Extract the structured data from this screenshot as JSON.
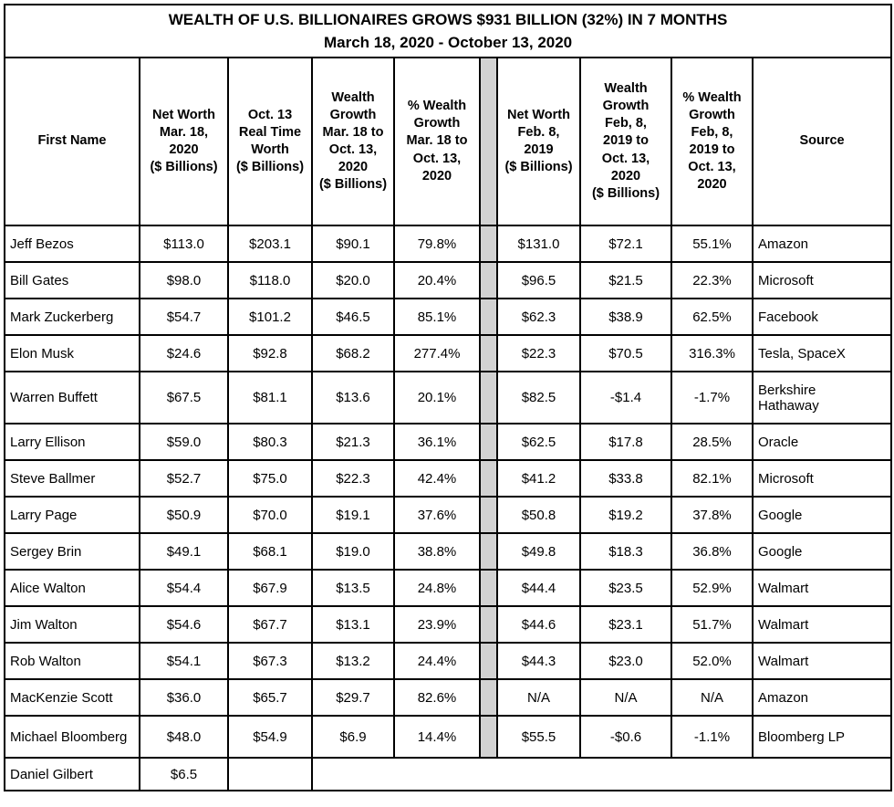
{
  "title": {
    "line1": "WEALTH OF U.S. BILLIONAIRES GROWS $931 BILLION (32%) IN 7 MONTHS",
    "line2": "March 18, 2020 - October 13, 2020"
  },
  "colors": {
    "border": "#000000",
    "spacer_fill": "#d2d2d2",
    "background": "#ffffff"
  },
  "table": {
    "headers": [
      "First Name",
      "Net Worth\nMar. 18,\n2020\n($ Billions)",
      "Oct. 13\nReal Time\nWorth\n($ Billions)",
      "Wealth\nGrowth\nMar. 18 to\nOct. 13,\n2020\n($ Billions)",
      "% Wealth\nGrowth\nMar. 18 to\nOct. 13,\n2020",
      "Net Worth\nFeb. 8,\n2019\n($ Billions)",
      "Wealth\nGrowth\nFeb, 8,\n2019 to\nOct. 13,\n2020\n($ Billions)",
      "% Wealth\nGrowth\nFeb, 8,\n2019 to\nOct. 13,\n2020",
      "Source"
    ],
    "rows": [
      {
        "first_name": "Jeff Bezos",
        "values": [
          "$113.0",
          "$203.1",
          "$90.1",
          "79.8%",
          "$131.0",
          "$72.1",
          "55.1%"
        ],
        "source": "Amazon",
        "partial": false
      },
      {
        "first_name": "Bill Gates",
        "values": [
          "$98.0",
          "$118.0",
          "$20.0",
          "20.4%",
          "$96.5",
          "$21.5",
          "22.3%"
        ],
        "source": "Microsoft",
        "partial": false
      },
      {
        "first_name": "Mark Zuckerberg",
        "values": [
          "$54.7",
          "$101.2",
          "$46.5",
          "85.1%",
          "$62.3",
          "$38.9",
          "62.5%"
        ],
        "source": "Facebook",
        "partial": false
      },
      {
        "first_name": "Elon Musk",
        "values": [
          "$24.6",
          "$92.8",
          "$68.2",
          "277.4%",
          "$22.3",
          "$70.5",
          "316.3%"
        ],
        "source": "Tesla, SpaceX",
        "partial": false
      },
      {
        "first_name": "Warren Buffett",
        "values": [
          "$67.5",
          "$81.1",
          "$13.6",
          "20.1%",
          "$82.5",
          "-$1.4",
          "-1.7%"
        ],
        "source": "Berkshire\nHathaway",
        "partial": false
      },
      {
        "first_name": "Larry Ellison",
        "values": [
          "$59.0",
          "$80.3",
          "$21.3",
          "36.1%",
          "$62.5",
          "$17.8",
          "28.5%"
        ],
        "source": "Oracle",
        "partial": false
      },
      {
        "first_name": "Steve Ballmer",
        "values": [
          "$52.7",
          "$75.0",
          "$22.3",
          "42.4%",
          "$41.2",
          "$33.8",
          "82.1%"
        ],
        "source": "Microsoft",
        "partial": false
      },
      {
        "first_name": "Larry Page",
        "values": [
          "$50.9",
          "$70.0",
          "$19.1",
          "37.6%",
          "$50.8",
          "$19.2",
          "37.8%"
        ],
        "source": "Google",
        "partial": false
      },
      {
        "first_name": "Sergey Brin",
        "values": [
          "$49.1",
          "$68.1",
          "$19.0",
          "38.8%",
          "$49.8",
          "$18.3",
          "36.8%"
        ],
        "source": "Google",
        "partial": false
      },
      {
        "first_name": "Alice Walton",
        "values": [
          "$54.4",
          "$67.9",
          "$13.5",
          "24.8%",
          "$44.4",
          "$23.5",
          "52.9%"
        ],
        "source": "Walmart",
        "partial": false
      },
      {
        "first_name": "Jim Walton",
        "values": [
          "$54.6",
          "$67.7",
          "$13.1",
          "23.9%",
          "$44.6",
          "$23.1",
          "51.7%"
        ],
        "source": "Walmart",
        "partial": false
      },
      {
        "first_name": "Rob Walton",
        "values": [
          "$54.1",
          "$67.3",
          "$13.2",
          "24.4%",
          "$44.3",
          "$23.0",
          "52.0%"
        ],
        "source": "Walmart",
        "partial": false
      },
      {
        "first_name": "MacKenzie Scott",
        "values": [
          "$36.0",
          "$65.7",
          "$29.7",
          "82.6%",
          "N/A",
          "N/A",
          "N/A"
        ],
        "source": "Amazon",
        "partial": false
      },
      {
        "first_name": "Michael Bloomberg",
        "values": [
          "$48.0",
          "$54.9",
          "$6.9",
          "14.4%",
          "$55.5",
          "-$0.6",
          "-1.1%"
        ],
        "source": "Bloomberg LP",
        "partial": false
      },
      {
        "first_name": "Daniel Gilbert",
        "values": [
          "$6.5",
          ""
        ],
        "source": "",
        "partial": true
      }
    ]
  }
}
